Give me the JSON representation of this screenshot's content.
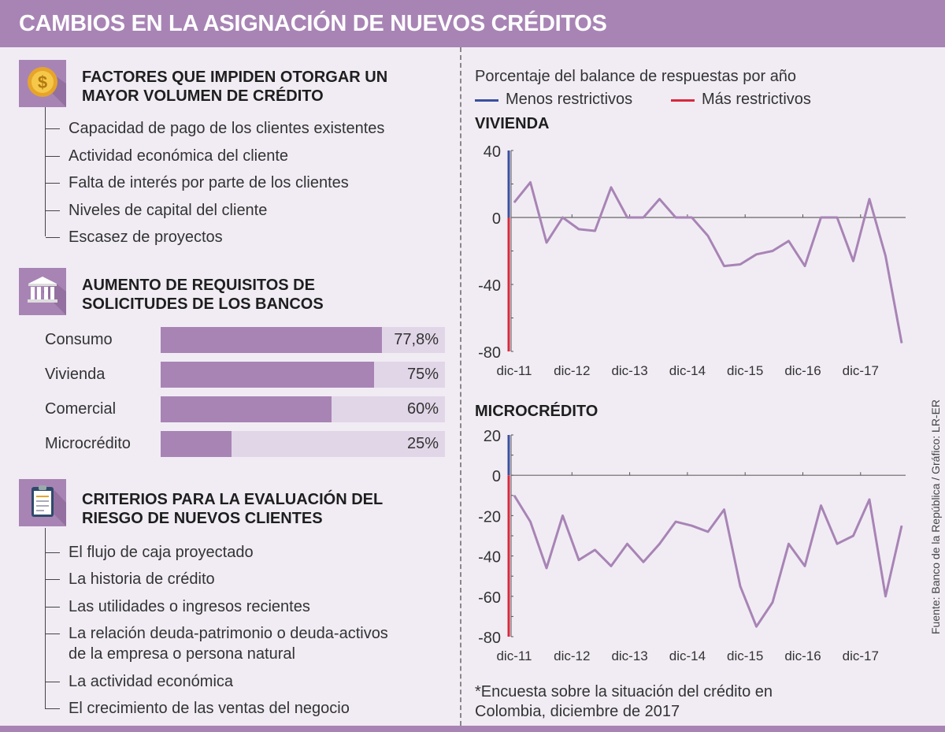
{
  "header": {
    "title": "CAMBIOS EN LA ASIGNACIÓN DE NUEVOS CRÉDITOS"
  },
  "factors": {
    "title_line1": "FACTORES QUE IMPIDEN OTORGAR UN",
    "title_line2": "MAYOR VOLUMEN DE CRÉDITO",
    "icon": "coin-dollar-icon",
    "items": [
      "Capacidad de pago de los clientes existentes",
      "Actividad económica del cliente",
      "Falta de interés por parte de los clientes",
      "Niveles de capital del cliente",
      "Escasez de proyectos"
    ]
  },
  "requirements": {
    "title_line1": "AUMENTO DE REQUISITOS DE",
    "title_line2": "SOLICITUDES DE LOS BANCOS",
    "icon": "bank-icon",
    "bars": [
      {
        "label": "Consumo",
        "value": 77.8,
        "display": "77,8%"
      },
      {
        "label": "Vivienda",
        "value": 75,
        "display": "75%"
      },
      {
        "label": "Comercial",
        "value": 60,
        "display": "60%"
      },
      {
        "label": "Microcrédito",
        "value": 25,
        "display": "25%"
      }
    ]
  },
  "criteria": {
    "title_line1": "CRITERIOS PARA LA EVALUACIÓN DEL",
    "title_line2": "RIESGO DE NUEVOS CLIENTES",
    "icon": "clipboard-icon",
    "items": [
      "El flujo de caja proyectado",
      "La historia de crédito",
      "Las utilidades o ingresos recientes",
      "La relación deuda-patrimonio o deuda-activos",
      "de la empresa o persona natural",
      "La actividad económica",
      "El crecimiento de las ventas del negocio"
    ]
  },
  "charts_header": {
    "subtitle": "Porcentaje del balance de respuestas por año",
    "legend_less": "Menos restrictivos",
    "legend_more": "Más restrictivos",
    "color_less": "#3a4fa0",
    "color_more": "#d8283c",
    "line_color": "#a884b5"
  },
  "chart_data": [
    {
      "type": "line",
      "title": "VIVIENDA",
      "ylim": [
        -80,
        40
      ],
      "yticks": [
        "40",
        "0",
        "-40",
        "-80"
      ],
      "ytick_values": [
        40,
        0,
        -40,
        -80
      ],
      "xticks": [
        "dic-11",
        "dic-12",
        "dic-13",
        "dic-14",
        "dic-15",
        "dic-16",
        "dic-17"
      ],
      "values": [
        9,
        21,
        -15,
        0,
        -7,
        -8,
        18,
        0,
        0,
        11,
        0,
        0,
        -11,
        -29,
        -28,
        -22,
        -20,
        -14,
        -29,
        0,
        0,
        -26,
        11,
        -23,
        -75
      ]
    },
    {
      "type": "line",
      "title": "MICROCRÉDITO",
      "ylim": [
        -80,
        20
      ],
      "yticks": [
        "20",
        "0",
        "-20",
        "-40",
        "-60",
        "-80"
      ],
      "ytick_values": [
        20,
        0,
        -20,
        -40,
        -60,
        -80
      ],
      "xticks": [
        "dic-11",
        "dic-12",
        "dic-13",
        "dic-14",
        "dic-15",
        "dic-16",
        "dic-17"
      ],
      "values": [
        -10,
        -23,
        -46,
        -20,
        -42,
        -37,
        -45,
        -34,
        -43,
        -34,
        -23,
        -25,
        -28,
        -17,
        -55,
        -75,
        -63,
        -34,
        -45,
        -15,
        -34,
        -30,
        -12,
        -60,
        -25
      ]
    }
  ],
  "footnote": {
    "line1": "*Encuesta sobre la situación del crédito en",
    "line2": "Colombia, diciembre de 2017"
  },
  "source": "Fuente: Banco de la República / Gráfico: LR-ER"
}
